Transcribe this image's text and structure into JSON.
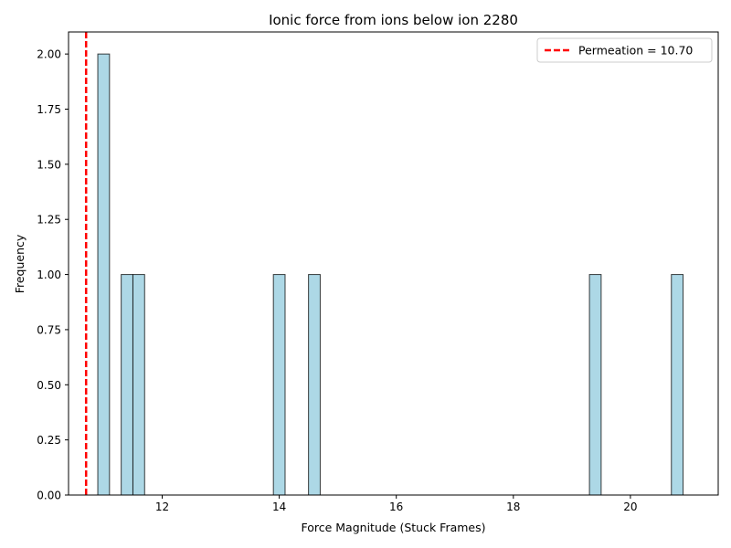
{
  "chart_data": {
    "type": "bar",
    "title": "Ionic force from ions below ion 2280",
    "xlabel": "Force Magnitude (Stuck Frames)",
    "ylabel": "Frequency",
    "xlim": [
      10.4,
      21.5
    ],
    "ylim": [
      0,
      2.1
    ],
    "x_ticks": [
      12,
      14,
      16,
      18,
      20
    ],
    "y_ticks": [
      0.0,
      0.25,
      0.5,
      0.75,
      1.0,
      1.25,
      1.5,
      1.75,
      2.0
    ],
    "bar_color": "#add8e6",
    "bar_edge_color": "#000000",
    "bins": [
      {
        "x0": 10.9,
        "x1": 11.1,
        "value": 2
      },
      {
        "x0": 11.3,
        "x1": 11.5,
        "value": 1
      },
      {
        "x0": 11.5,
        "x1": 11.7,
        "value": 1
      },
      {
        "x0": 13.9,
        "x1": 14.1,
        "value": 1
      },
      {
        "x0": 14.5,
        "x1": 14.7,
        "value": 1
      },
      {
        "x0": 19.3,
        "x1": 19.5,
        "value": 1
      },
      {
        "x0": 20.7,
        "x1": 20.9,
        "value": 1
      }
    ],
    "reference_line": {
      "x": 10.7,
      "label": "Permeation = 10.70",
      "color": "#ff0000",
      "style": "dashed"
    },
    "legend": {
      "placement": "top-right"
    },
    "grid": false
  }
}
